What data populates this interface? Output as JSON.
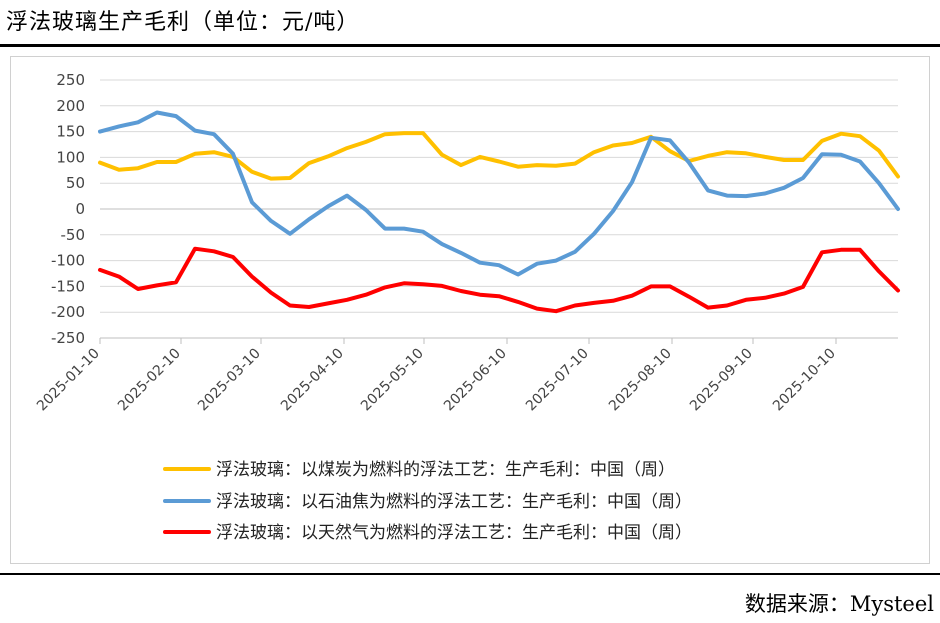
{
  "title": "浮法玻璃生产毛利（单位：元/吨）",
  "source": "数据来源：Mysteel",
  "chart_data": {
    "type": "line",
    "title": "浮法玻璃生产毛利（单位：元/吨）",
    "xlabel": "",
    "ylabel": "",
    "ylim": [
      -250,
      250
    ],
    "yticks": [
      250,
      200,
      150,
      100,
      50,
      0,
      -50,
      -100,
      -150,
      -200,
      -250
    ],
    "xtick_labels": [
      "2025-01-10",
      "2025-02-10",
      "2025-03-10",
      "2025-04-10",
      "2025-05-10",
      "2025-06-10",
      "2025-07-10",
      "2025-08-10",
      "2025-09-10",
      "2025-10-10"
    ],
    "grid": true,
    "legend_position": "bottom",
    "series": [
      {
        "name": "浮法玻璃：以煤炭为燃料的浮法工艺：生产毛利：中国（周）",
        "color": "#FFC000",
        "values": [
          90,
          76,
          79,
          91,
          91,
          107,
          110,
          101,
          72,
          59,
          60,
          89,
          102,
          118,
          130,
          145,
          147,
          147,
          105,
          85,
          101,
          92,
          82,
          85,
          84,
          88,
          110,
          123,
          128,
          140,
          112,
          93,
          103,
          110,
          108,
          101,
          95,
          95,
          132,
          146,
          141,
          113,
          63
        ]
      },
      {
        "name": "浮法玻璃：以石油焦为燃料的浮法工艺：生产毛利：中国（周）",
        "color": "#5B9BD5",
        "values": [
          150,
          160,
          168,
          187,
          180,
          152,
          145,
          107,
          13,
          -23,
          -48,
          -20,
          5,
          26,
          -2,
          -38,
          -38,
          -44,
          -68,
          -85,
          -104,
          -109,
          -127,
          -106,
          -100,
          -83,
          -48,
          -4,
          52,
          138,
          133,
          90,
          36,
          26,
          25,
          30,
          41,
          60,
          106,
          105,
          92,
          50,
          0
        ]
      },
      {
        "name": "浮法玻璃：以天然气为燃料的浮法工艺：生产毛利：中国（周）",
        "color": "#FF0000",
        "values": [
          -118,
          -131,
          -155,
          -148,
          -142,
          -77,
          -82,
          -93,
          -131,
          -162,
          -187,
          -190,
          -183,
          -176,
          -166,
          -152,
          -144,
          -146,
          -149,
          -159,
          -166,
          -169,
          -180,
          -193,
          -198,
          -187,
          -182,
          -178,
          -168,
          -150,
          -150,
          -170,
          -191,
          -187,
          -176,
          -172,
          -164,
          -151,
          -84,
          -79,
          -79,
          -121,
          -158
        ]
      }
    ]
  }
}
